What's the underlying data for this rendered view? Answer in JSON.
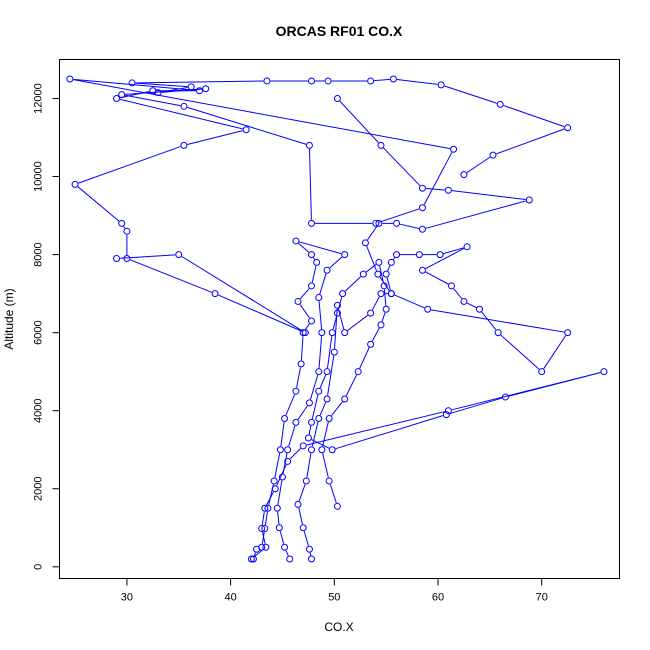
{
  "chart_data": {
    "type": "line",
    "title": "ORCAS RF01 CO.X",
    "xlabel": "CO.X",
    "ylabel": "Altitude (m)",
    "xlim": [
      23.5,
      77.5
    ],
    "ylim": [
      -300,
      13000
    ],
    "xticks": [
      "30",
      "40",
      "50",
      "60",
      "70"
    ],
    "yticks": [
      "0",
      "2000",
      "4000",
      "6000",
      "8000",
      "10000",
      "12000"
    ],
    "grid": false,
    "legend": "none",
    "markers": "open circles",
    "color": "#0000ff",
    "series": [
      {
        "values": [
          [
            42.2,
            200
          ],
          [
            42.5,
            450
          ],
          [
            43.0,
            500
          ],
          [
            43.3,
            980
          ],
          [
            43.6,
            1500
          ],
          [
            44.2,
            2200
          ],
          [
            44.8,
            3000
          ],
          [
            45.2,
            3800
          ],
          [
            46.3,
            4500
          ],
          [
            46.8,
            5200
          ],
          [
            47.0,
            6000
          ],
          [
            47.8,
            6300
          ],
          [
            46.5,
            6800
          ],
          [
            47.8,
            7200
          ],
          [
            48.3,
            7800
          ],
          [
            47.8,
            8000
          ],
          [
            46.3,
            8350
          ],
          [
            51.0,
            8000
          ],
          [
            49.3,
            7600
          ],
          [
            48.5,
            6900
          ],
          [
            48.8,
            6000
          ],
          [
            48.5,
            5000
          ],
          [
            47.6,
            4200
          ],
          [
            46.3,
            3700
          ],
          [
            45.5,
            3000
          ],
          [
            45.0,
            2300
          ],
          [
            44.5,
            1500
          ],
          [
            44.7,
            1000
          ],
          [
            45.2,
            500
          ],
          [
            45.7,
            200
          ]
        ]
      },
      {
        "values": [
          [
            47.8,
            200
          ],
          [
            47.6,
            450
          ],
          [
            47.0,
            1000
          ],
          [
            46.5,
            1600
          ],
          [
            47.3,
            2200
          ],
          [
            47.8,
            3000
          ],
          [
            48.5,
            3800
          ],
          [
            49.3,
            4300
          ],
          [
            50.0,
            5500
          ],
          [
            50.3,
            6700
          ],
          [
            51.0,
            6000
          ],
          [
            53.5,
            6500
          ],
          [
            54.5,
            7000
          ],
          [
            55.5,
            7000
          ],
          [
            55.0,
            7500
          ],
          [
            55.5,
            7800
          ],
          [
            56.0,
            8000
          ],
          [
            58.2,
            8000
          ],
          [
            60.2,
            8000
          ],
          [
            62.8,
            8200
          ],
          [
            58.5,
            7600
          ],
          [
            61.3,
            7200
          ],
          [
            62.5,
            6800
          ],
          [
            64.0,
            6600
          ],
          [
            65.8,
            6000
          ],
          [
            70.0,
            5000
          ],
          [
            72.5,
            6000
          ],
          [
            59.0,
            6600
          ],
          [
            55.5,
            7000
          ],
          [
            54.2,
            7500
          ],
          [
            53.0,
            8300
          ],
          [
            54.3,
            8800
          ],
          [
            56.0,
            8800
          ],
          [
            58.5,
            8650
          ],
          [
            68.8,
            9400
          ],
          [
            61.0,
            9650
          ],
          [
            58.5,
            9700
          ],
          [
            54.5,
            10800
          ],
          [
            50.3,
            12000
          ]
        ]
      },
      {
        "values": [
          [
            50.3,
            1550
          ],
          [
            49.5,
            2200
          ],
          [
            48.8,
            3000
          ],
          [
            49.5,
            3800
          ],
          [
            51.0,
            4300
          ],
          [
            52.3,
            5000
          ],
          [
            53.5,
            5700
          ],
          [
            54.5,
            6200
          ],
          [
            55.0,
            6600
          ],
          [
            54.8,
            7200
          ],
          [
            54.3,
            7800
          ],
          [
            52.8,
            7500
          ],
          [
            50.8,
            7000
          ],
          [
            50.3,
            6500
          ],
          [
            49.8,
            6000
          ],
          [
            49.3,
            5000
          ],
          [
            48.5,
            4500
          ],
          [
            47.8,
            3700
          ],
          [
            47.5,
            3300
          ],
          [
            49.8,
            3000
          ],
          [
            60.8,
            3900
          ],
          [
            66.5,
            4350
          ],
          [
            76.0,
            5000
          ],
          [
            61.0,
            4000
          ],
          [
            47.0,
            3100
          ],
          [
            45.5,
            2700
          ],
          [
            44.3,
            2000
          ],
          [
            43.3,
            1500
          ],
          [
            43.0,
            980
          ],
          [
            43.4,
            500
          ],
          [
            42.0,
            200
          ]
        ]
      },
      {
        "values": [
          [
            29.0,
            7900
          ],
          [
            35.0,
            8000
          ],
          [
            47.2,
            6000
          ],
          [
            38.5,
            7000
          ],
          [
            30.0,
            7900
          ],
          [
            30.0,
            8600
          ],
          [
            29.5,
            8800
          ],
          [
            25.0,
            9800
          ],
          [
            35.5,
            10800
          ],
          [
            41.5,
            11200
          ],
          [
            29.0,
            12000
          ],
          [
            32.5,
            12200
          ],
          [
            37.0,
            12200
          ],
          [
            24.5,
            12500
          ],
          [
            61.5,
            10700
          ],
          [
            58.5,
            9200
          ],
          [
            54.0,
            8800
          ],
          [
            47.8,
            8800
          ],
          [
            47.6,
            10800
          ],
          [
            35.5,
            11800
          ],
          [
            29.5,
            12100
          ],
          [
            37.6,
            12250
          ],
          [
            33.0,
            12150
          ],
          [
            36.2,
            12300
          ],
          [
            30.5,
            12400
          ],
          [
            43.5,
            12450
          ],
          [
            47.8,
            12450
          ],
          [
            49.4,
            12450
          ],
          [
            53.5,
            12450
          ],
          [
            55.7,
            12500
          ],
          [
            60.3,
            12350
          ],
          [
            66.0,
            11850
          ],
          [
            72.5,
            11250
          ],
          [
            65.3,
            10550
          ],
          [
            62.5,
            10050
          ]
        ]
      }
    ]
  }
}
